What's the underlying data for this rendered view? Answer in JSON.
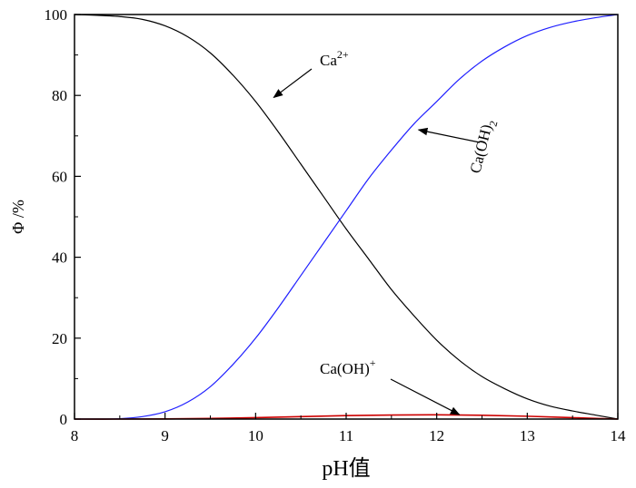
{
  "chart_data": {
    "type": "line",
    "title": "",
    "xlabel": "pH值",
    "ylabel": "Φ /%",
    "xlim": [
      8,
      14
    ],
    "ylim": [
      0,
      100
    ],
    "xticks": [
      8,
      9,
      10,
      11,
      12,
      13,
      14
    ],
    "yticks": [
      0,
      20,
      40,
      60,
      80,
      100
    ],
    "grid": false,
    "legend": "none",
    "series": [
      {
        "name": "Ca2+",
        "color": "#000000",
        "x": [
          8,
          8.25,
          8.5,
          8.75,
          9,
          9.25,
          9.5,
          9.75,
          10,
          10.25,
          10.5,
          10.75,
          11,
          11.25,
          11.5,
          11.75,
          12,
          12.25,
          12.5,
          12.75,
          13,
          13.25,
          13.5,
          13.75,
          14
        ],
        "y": [
          100,
          99.8,
          99.5,
          98.8,
          97.2,
          94.5,
          90.5,
          85,
          78.5,
          71,
          63,
          55,
          47,
          39.5,
          32,
          25.5,
          19.5,
          14.5,
          10.5,
          7.5,
          5,
          3.2,
          2,
          1,
          0
        ]
      },
      {
        "name": "Ca(OH)2",
        "color": "#1f1fff",
        "x": [
          8,
          8.25,
          8.5,
          8.75,
          9,
          9.25,
          9.5,
          9.75,
          10,
          10.25,
          10.5,
          10.75,
          11,
          11.25,
          11.5,
          11.75,
          12,
          12.25,
          12.5,
          12.75,
          13,
          13.25,
          13.5,
          13.75,
          14
        ],
        "y": [
          0,
          0,
          0.1,
          0.6,
          1.8,
          4.2,
          8,
          13.5,
          20,
          27.5,
          35.5,
          43.5,
          51.5,
          59.5,
          66.5,
          73,
          78.5,
          84,
          88.5,
          92,
          94.8,
          96.8,
          98.2,
          99.2,
          100
        ]
      },
      {
        "name": "Ca(OH)+",
        "color": "#cc0000",
        "x": [
          8,
          8.5,
          9,
          9.5,
          10,
          10.5,
          11,
          11.5,
          12,
          12.5,
          13,
          13.5,
          14
        ],
        "y": [
          0,
          0,
          0.05,
          0.15,
          0.35,
          0.6,
          0.85,
          1.0,
          1.05,
          0.95,
          0.7,
          0.35,
          0
        ]
      }
    ],
    "annotations": [
      {
        "base": "Ca",
        "sup": "2+",
        "sub": "",
        "arrow_to": [
          10.2,
          79.5
        ]
      },
      {
        "base": "Ca(OH)",
        "sup": "",
        "sub": "2",
        "arrow_to": [
          11.8,
          71.5
        ]
      },
      {
        "base": "Ca(OH)",
        "sup": "+",
        "sub": "",
        "arrow_to": [
          12.25,
          1.1
        ]
      }
    ]
  }
}
